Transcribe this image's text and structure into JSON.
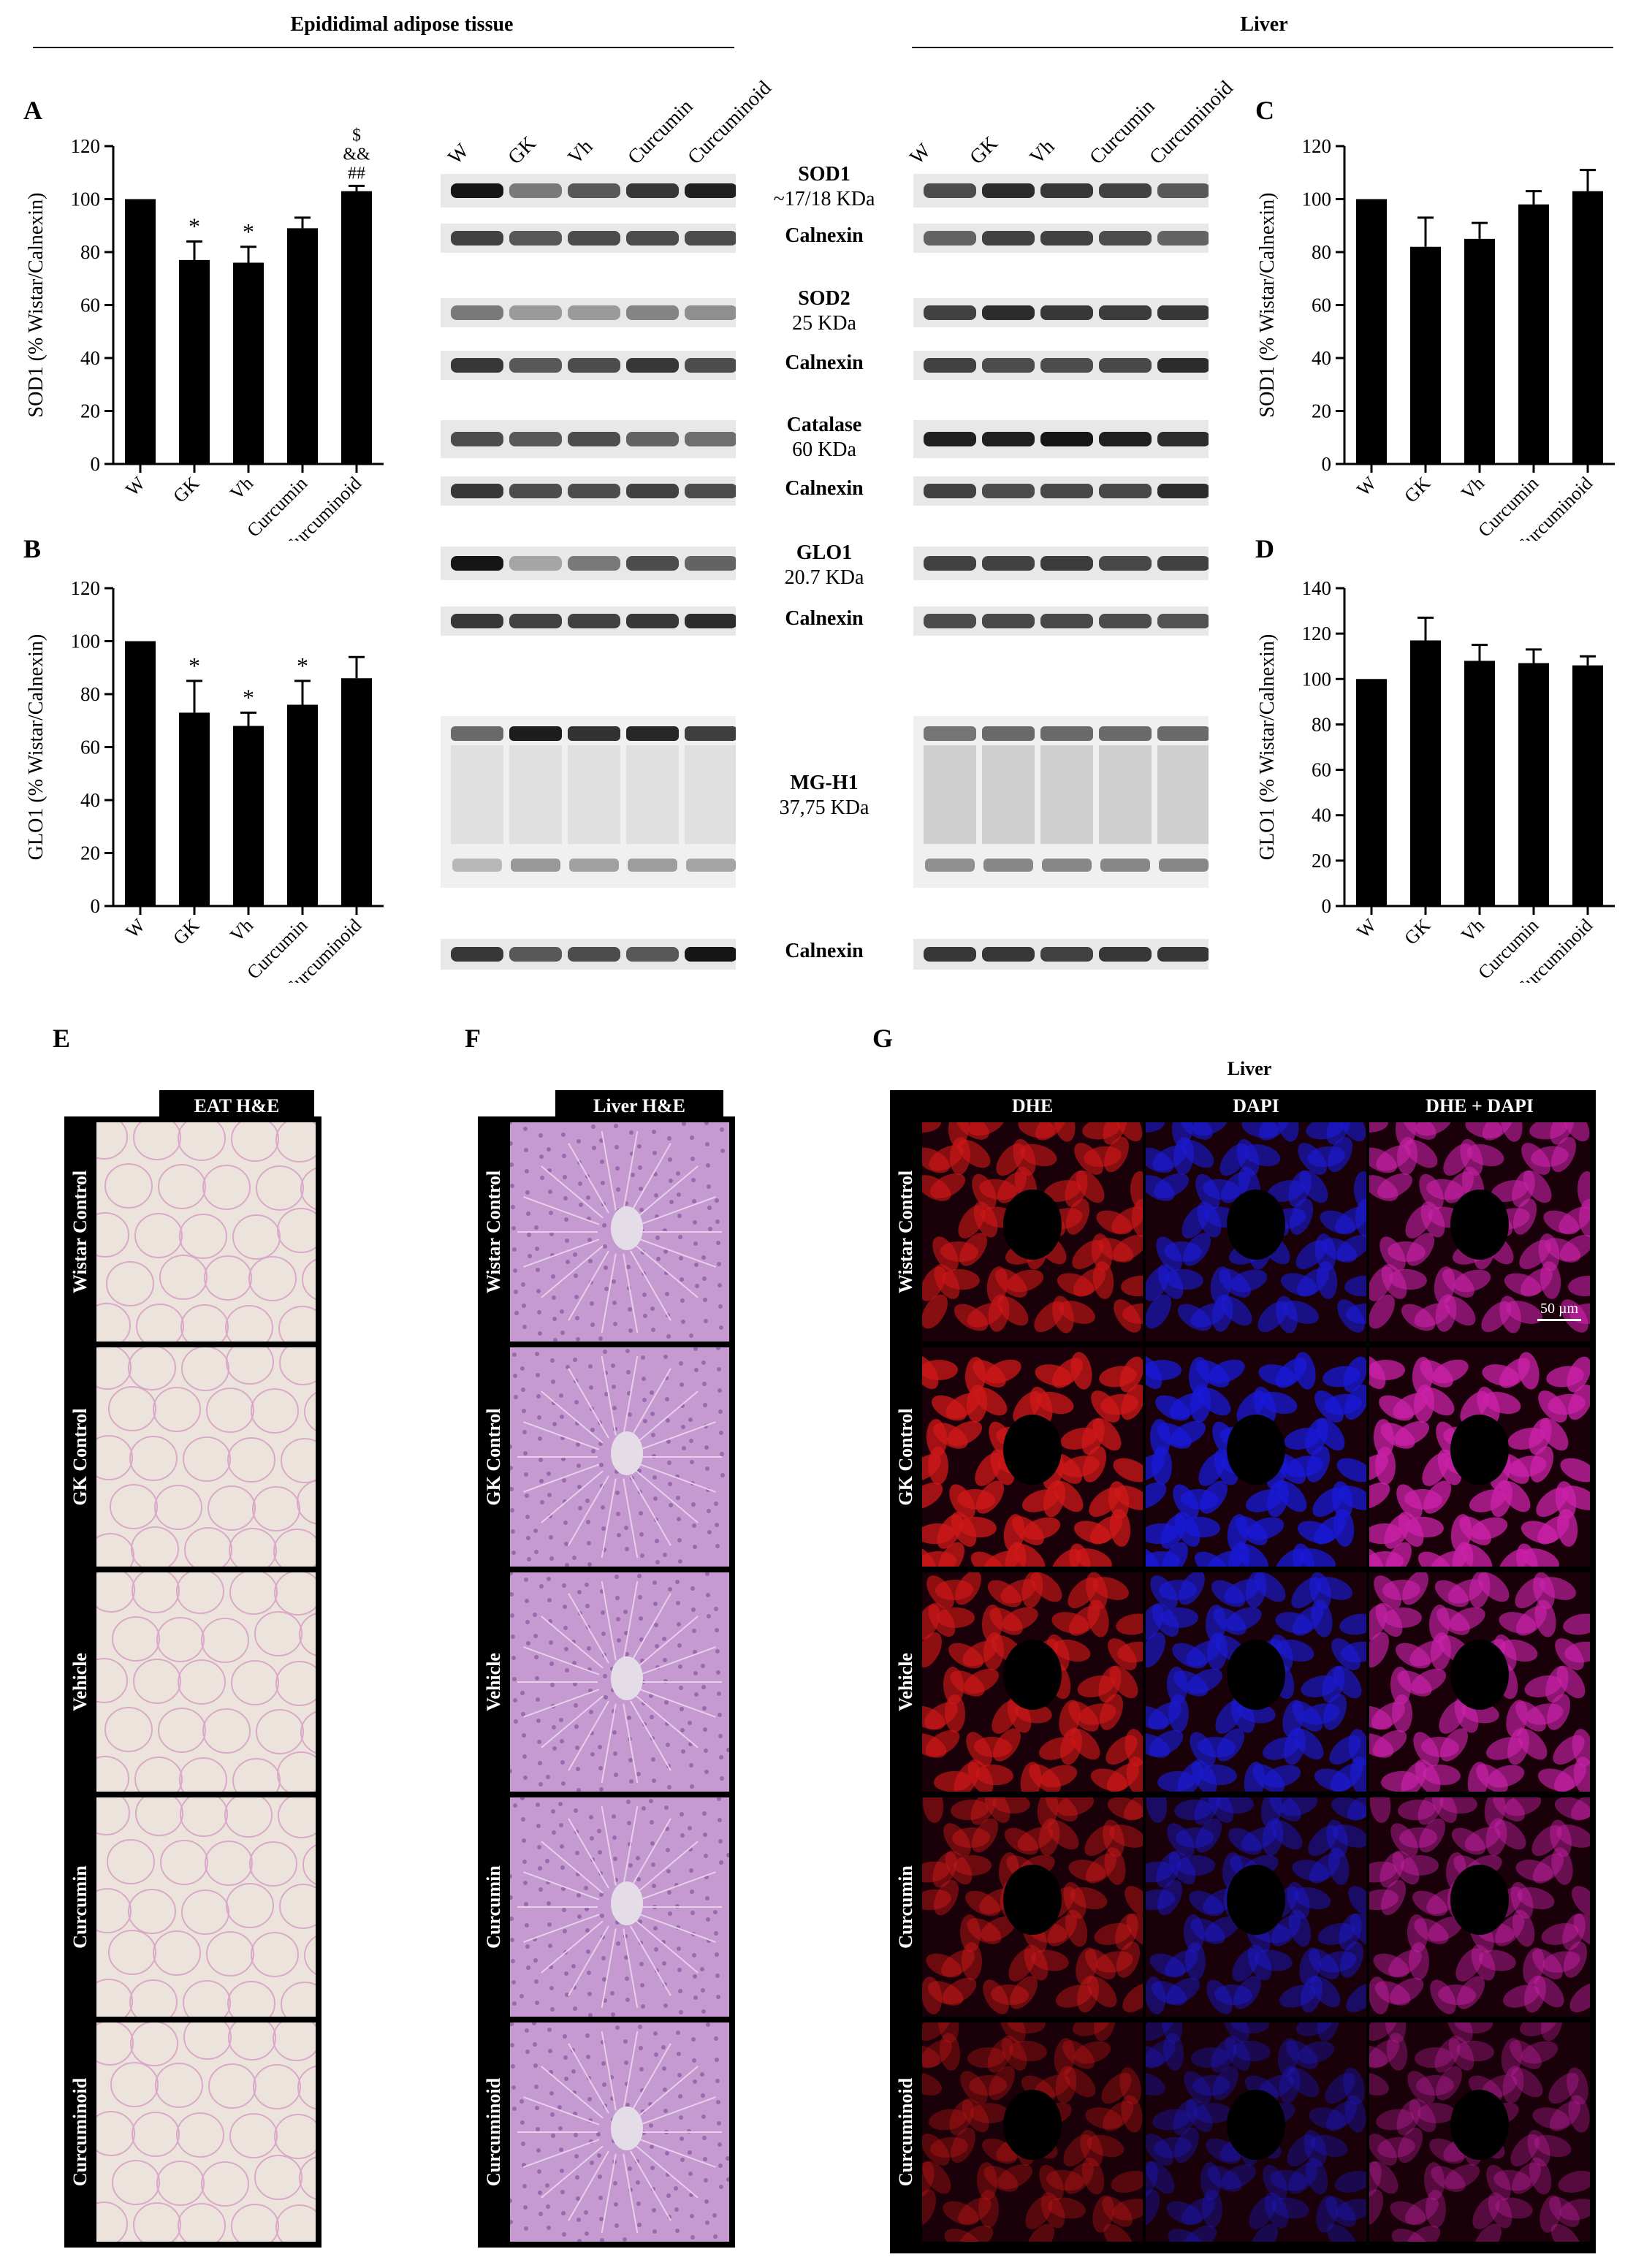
{
  "headers": {
    "adipose": "Epididimal adipose tissue",
    "liver": "Liver"
  },
  "panel_letters": {
    "a": "A",
    "b": "B",
    "c": "C",
    "d": "D",
    "e": "E",
    "f": "F",
    "g": "G"
  },
  "western_blot": {
    "lanes": [
      "W",
      "GK",
      "Vh",
      "Curcumin",
      "Curcuminoid"
    ],
    "labels": [
      {
        "name": "SOD1",
        "sub": "~17/18 KDa"
      },
      {
        "name": "Calnexin",
        "sub": ""
      },
      {
        "name": "SOD2",
        "sub": "25 KDa"
      },
      {
        "name": "Calnexin",
        "sub": ""
      },
      {
        "name": "Catalase",
        "sub": "60 KDa"
      },
      {
        "name": "Calnexin",
        "sub": ""
      },
      {
        "name": "GLO1",
        "sub": "20.7 KDa"
      },
      {
        "name": "Calnexin",
        "sub": ""
      },
      {
        "name": "MG-H1",
        "sub": "37,75 KDa"
      },
      {
        "name": "Calnexin",
        "sub": ""
      }
    ]
  },
  "chart_data": [
    {
      "panel": "A",
      "type": "bar",
      "categories": [
        "W",
        "GK",
        "Vh",
        "Curcumin",
        "Curcuminoid"
      ],
      "values": [
        100,
        77,
        76,
        89,
        103
      ],
      "errors": [
        0,
        7,
        6,
        4,
        2
      ],
      "annotations": [
        "",
        "*",
        "*",
        "",
        "$\n&&\n##"
      ],
      "ylabel": "SOD1 (% Wistar/Calnexin)",
      "ylim": [
        0,
        120
      ],
      "yticks": [
        "0",
        "20",
        "40",
        "60",
        "80",
        "100",
        "120"
      ]
    },
    {
      "panel": "B",
      "type": "bar",
      "categories": [
        "W",
        "GK",
        "Vh",
        "Curcumin",
        "Curcuminoid"
      ],
      "values": [
        100,
        73,
        68,
        76,
        86
      ],
      "errors": [
        0,
        12,
        5,
        9,
        8
      ],
      "annotations": [
        "",
        "*",
        "*",
        "*",
        ""
      ],
      "ylabel": "GLO1 (% Wistar/Calnexin)",
      "ylim": [
        0,
        120
      ],
      "yticks": [
        "0",
        "20",
        "40",
        "60",
        "80",
        "100",
        "120"
      ]
    },
    {
      "panel": "C",
      "type": "bar",
      "categories": [
        "W",
        "GK",
        "Vh",
        "Curcumin",
        "Curcuminoid"
      ],
      "values": [
        100,
        82,
        85,
        98,
        103
      ],
      "errors": [
        0,
        11,
        6,
        5,
        8
      ],
      "annotations": [
        "",
        "",
        "",
        "",
        ""
      ],
      "ylabel": "SOD1 (% Wistar/Calnexin)",
      "ylim": [
        0,
        120
      ],
      "yticks": [
        "0",
        "20",
        "40",
        "60",
        "80",
        "100",
        "120"
      ]
    },
    {
      "panel": "D",
      "type": "bar",
      "categories": [
        "W",
        "GK",
        "Vh",
        "Curcumin",
        "Curcuminoid"
      ],
      "values": [
        100,
        117,
        108,
        107,
        106
      ],
      "errors": [
        0,
        10,
        7,
        6,
        4
      ],
      "annotations": [
        "",
        "",
        "",
        "",
        ""
      ],
      "ylabel": "GLO1 (% Wistar/Calnexin)",
      "ylim": [
        0,
        140
      ],
      "yticks": [
        "0",
        "20",
        "40",
        "60",
        "80",
        "100",
        "120",
        "140"
      ]
    }
  ],
  "histology": {
    "eat_title": "EAT H&E",
    "liver_title": "Liver H&E",
    "rows": [
      "Wistar Control",
      "GK Control",
      "Vehicle",
      "Curcumin",
      "Curcuminoid"
    ],
    "g_title": "Liver",
    "g_cols": [
      "DHE",
      "DAPI",
      "DHE + DAPI"
    ],
    "scale_bar": "50 µm"
  },
  "colors": {
    "bar": "#000000",
    "eat_bg": "#ece4dc",
    "liver_he": "#c49ad0",
    "dhe": "#d01818",
    "dapi": "#1a1ad8",
    "merge": "#cc22aa"
  }
}
